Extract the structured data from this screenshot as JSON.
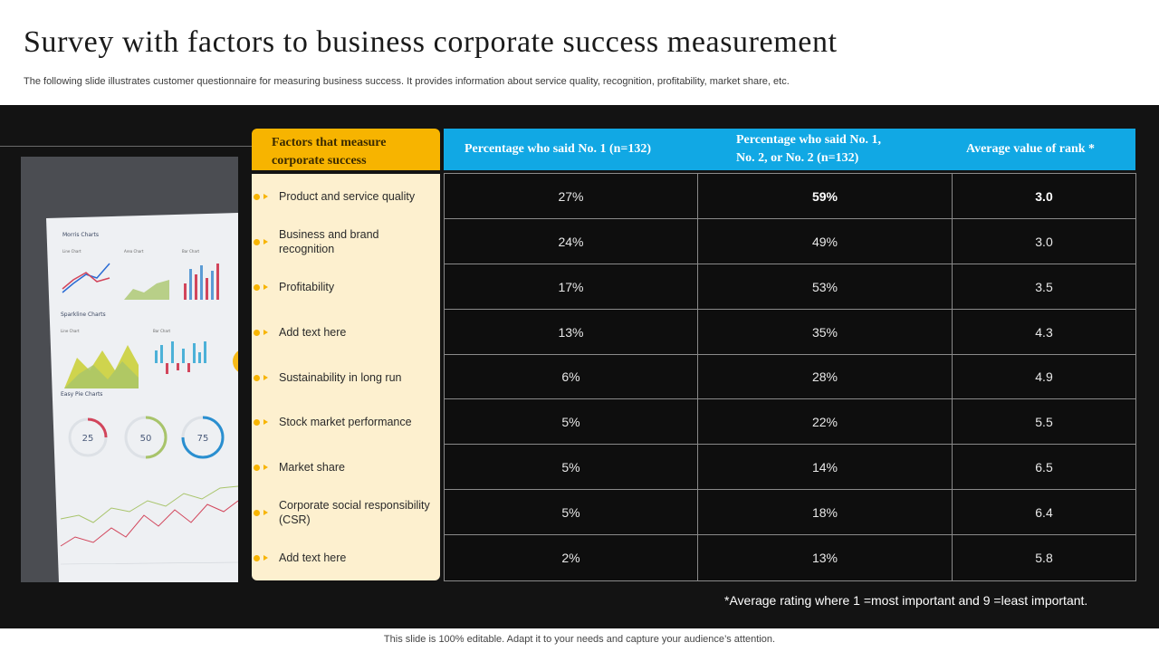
{
  "slide": {
    "title": "Survey with factors to business corporate success measurement",
    "subtitle": "The following slide illustrates customer questionnaire for measuring business success. It provides information about service quality, recognition, profitability, market share, etc.",
    "footnote": "*Average rating where 1 =most important and 9 =least important.",
    "bottom_note": "This slide is 100% editable. Adapt it to your needs and capture your audience’s attention."
  },
  "photo": {
    "section_morris": "Morris Charts",
    "label_line": "Line Chart",
    "label_area": "Area Chart",
    "label_bar": "Bar Chart",
    "section_sparkline": "Sparkline Charts",
    "label_line2": "Line Chart",
    "label_bar2": "Bar Chart",
    "section_pie": "Easy Pie Charts",
    "pie1": "25",
    "pie2": "50",
    "pie3": "75"
  },
  "table": {
    "factors_header_line1": "Factors that measure",
    "factors_header_line2": "corporate success",
    "col1_header": "Percentage who said No. 1 (n=132)",
    "col2_header_line1": "Percentage who said No. 1,",
    "col2_header_line2": "No. 2, or No. 2 (n=132)",
    "col3_header": "Average value of rank *",
    "rows": [
      {
        "factor": "Product and service quality",
        "pct1": "27%",
        "pct12": "59%",
        "avg": "3.0"
      },
      {
        "factor": "Business and brand recognition",
        "pct1": "24%",
        "pct12": "49%",
        "avg": "3.0"
      },
      {
        "factor": "Profitability",
        "pct1": "17%",
        "pct12": "53%",
        "avg": "3.5"
      },
      {
        "factor": "Add text here",
        "pct1": "13%",
        "pct12": "35%",
        "avg": "4.3"
      },
      {
        "factor": "Sustainability in long run",
        "pct1": "6%",
        "pct12": "28%",
        "avg": "4.9"
      },
      {
        "factor": "Stock market performance",
        "pct1": "5%",
        "pct12": "22%",
        "avg": "5.5"
      },
      {
        "factor": "Market share",
        "pct1": "5%",
        "pct12": "14%",
        "avg": "6.5"
      },
      {
        "factor": "Corporate social responsibility (CSR)",
        "pct1": "5%",
        "pct12": "18%",
        "avg": "6.4"
      },
      {
        "factor": "Add text here",
        "pct1": "2%",
        "pct12": "13%",
        "avg": "5.8"
      }
    ]
  },
  "colors": {
    "accent_orange": "#f7b400",
    "header_blue": "#11a8e4",
    "panel_dark": "#131313",
    "factor_bg": "#fdf0cf"
  }
}
